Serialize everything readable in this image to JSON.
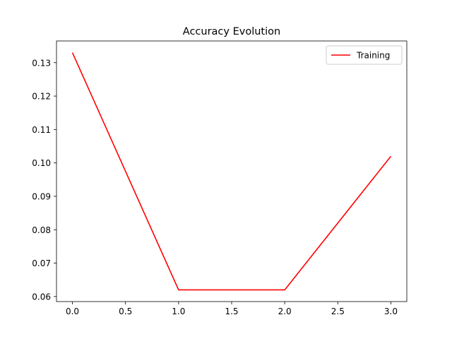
{
  "chart_data": {
    "type": "line",
    "title": "Accuracy Evolution",
    "xlabel": "",
    "ylabel": "",
    "xlim": [
      -0.15,
      3.15
    ],
    "ylim": [
      0.0585,
      0.1365
    ],
    "x_ticks": [
      0.0,
      0.5,
      1.0,
      1.5,
      2.0,
      2.5,
      3.0
    ],
    "x_tick_labels": [
      "0.0",
      "0.5",
      "1.0",
      "1.5",
      "2.0",
      "2.5",
      "3.0"
    ],
    "y_ticks": [
      0.06,
      0.07,
      0.08,
      0.09,
      0.1,
      0.11,
      0.12,
      0.13
    ],
    "y_tick_labels": [
      "0.06",
      "0.07",
      "0.08",
      "0.09",
      "0.10",
      "0.11",
      "0.12",
      "0.13"
    ],
    "grid": false,
    "legend_position": "top-right",
    "series": [
      {
        "name": "Training",
        "color": "#ff0000",
        "x": [
          0,
          1,
          2,
          3
        ],
        "y": [
          0.133,
          0.062,
          0.062,
          0.102
        ]
      }
    ]
  }
}
